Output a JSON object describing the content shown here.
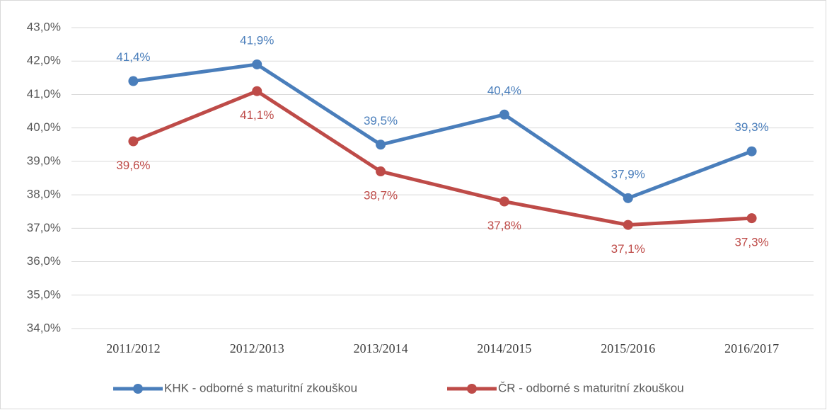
{
  "chart_data": {
    "type": "line",
    "categories": [
      "2011/2012",
      "2012/2013",
      "2013/2014",
      "2014/2015",
      "2015/2016",
      "2016/2017"
    ],
    "series": [
      {
        "name": "KHK - odborné s maturitní zkouškou",
        "color": "#4a7ebb",
        "values": [
          41.4,
          41.9,
          39.5,
          40.4,
          37.9,
          39.3
        ],
        "value_labels": [
          "41,4%",
          "41,9%",
          "39,5%",
          "40,4%",
          "37,9%",
          "39,3%"
        ]
      },
      {
        "name": "ČR - odborné s maturitní zkouškou",
        "color": "#be4b48",
        "values": [
          39.6,
          41.1,
          38.7,
          37.8,
          37.1,
          37.3
        ],
        "value_labels": [
          "39,6%",
          "41,1%",
          "38,7%",
          "37,8%",
          "37,1%",
          "37,3%"
        ]
      }
    ],
    "ylim": [
      34,
      43
    ],
    "yticks": [
      {
        "value": 34,
        "label": "34,0%"
      },
      {
        "value": 35,
        "label": "35,0%"
      },
      {
        "value": 36,
        "label": "36,0%"
      },
      {
        "value": 37,
        "label": "37,0%"
      },
      {
        "value": 38,
        "label": "38,0%"
      },
      {
        "value": 39,
        "label": "39,0%"
      },
      {
        "value": 40,
        "label": "40,0%"
      },
      {
        "value": 41,
        "label": "41,0%"
      },
      {
        "value": 42,
        "label": "42,0%"
      },
      {
        "value": 43,
        "label": "43,0%"
      }
    ],
    "grid": true,
    "legend": "bottom"
  }
}
